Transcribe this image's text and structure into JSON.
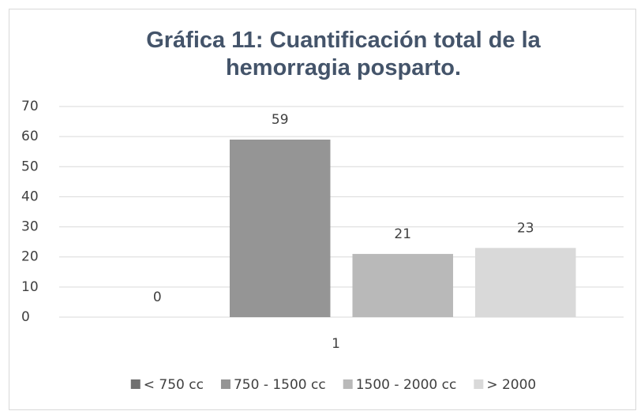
{
  "chart_data": {
    "type": "bar",
    "title": "Gráfica 11: Cuantificación total de la hemorragia posparto.",
    "categories": [
      "1"
    ],
    "series": [
      {
        "name": "< 750 cc",
        "color": "#707070",
        "values": [
          0
        ]
      },
      {
        "name": "750 - 1500 cc",
        "color": "#959595",
        "values": [
          59
        ]
      },
      {
        "name": "1500 - 2000 cc",
        "color": "#b9b9b9",
        "values": [
          21
        ]
      },
      {
        "name": "> 2000",
        "color": "#d9d9d9",
        "values": [
          23
        ]
      }
    ],
    "ylim": [
      0,
      70
    ],
    "yticks": [
      0,
      10,
      20,
      30,
      40,
      50,
      60,
      70
    ],
    "grid": true,
    "legend": "bottom"
  }
}
